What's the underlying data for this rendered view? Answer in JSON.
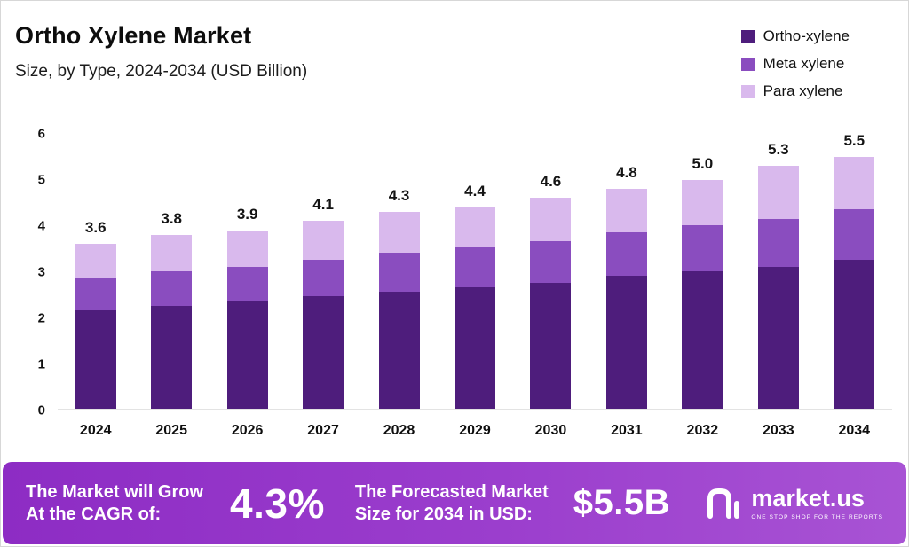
{
  "header": {
    "title": "Ortho Xylene Market",
    "subtitle": "Size, by Type, 2024-2034 (USD Billion)"
  },
  "legend": [
    {
      "label": "Ortho-xylene",
      "color": "#4e1d7c"
    },
    {
      "label": "Meta xylene",
      "color": "#8a4dbf"
    },
    {
      "label": "Para xylene",
      "color": "#d9b9ed"
    }
  ],
  "chart_data": {
    "type": "bar",
    "stacked": true,
    "title": "Ortho Xylene Market Size, by Type, 2024-2034 (USD Billion)",
    "xlabel": "",
    "ylabel": "",
    "ylim": [
      0,
      6
    ],
    "yticks": [
      0,
      1,
      2,
      3,
      4,
      5,
      6
    ],
    "grid": false,
    "legend_position": "top-right",
    "categories": [
      "2024",
      "2025",
      "2026",
      "2027",
      "2028",
      "2029",
      "2030",
      "2031",
      "2032",
      "2033",
      "2034"
    ],
    "series": [
      {
        "name": "Ortho-xylene",
        "color": "#4e1d7c",
        "values": [
          2.15,
          2.25,
          2.35,
          2.45,
          2.55,
          2.65,
          2.75,
          2.9,
          3.0,
          3.1,
          3.25
        ]
      },
      {
        "name": "Meta xylene",
        "color": "#8a4dbf",
        "values": [
          0.7,
          0.75,
          0.75,
          0.8,
          0.85,
          0.88,
          0.9,
          0.95,
          1.0,
          1.05,
          1.1
        ]
      },
      {
        "name": "Para xylene",
        "color": "#d9b9ed",
        "values": [
          0.75,
          0.8,
          0.8,
          0.85,
          0.9,
          0.87,
          0.95,
          0.95,
          1.0,
          1.15,
          1.15
        ]
      }
    ],
    "totals": [
      3.6,
      3.8,
      3.9,
      4.1,
      4.3,
      4.4,
      4.6,
      4.8,
      5.0,
      5.3,
      5.5
    ]
  },
  "footer": {
    "cagr_label": "The Market will Grow\nAt the CAGR of:",
    "cagr_value": "4.3%",
    "forecast_label": "The Forecasted Market\nSize for 2034 in USD:",
    "forecast_value": "$5.5B",
    "brand_name": "market.us",
    "brand_tagline": "ONE STOP SHOP FOR THE REPORTS"
  }
}
